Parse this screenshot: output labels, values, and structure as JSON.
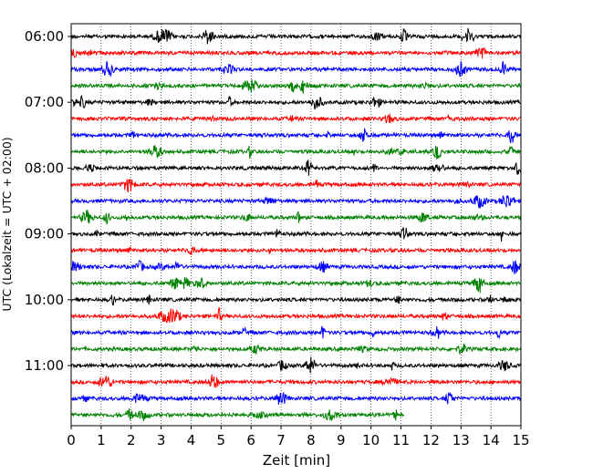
{
  "chart_data": {
    "type": "line",
    "xlabel": "Zeit  [min]",
    "ylabel": "UTC (Lokalzeit = UTC + 02:00)",
    "xlim": [
      0,
      15
    ],
    "x_ticks": [
      "0",
      "1",
      "2",
      "3",
      "4",
      "5",
      "6",
      "7",
      "8",
      "9",
      "10",
      "11",
      "12",
      "13",
      "14",
      "15"
    ],
    "y_ticks": [
      "06:00",
      "07:00",
      "08:00",
      "09:00",
      "10:00",
      "11:00"
    ],
    "grid": "vertical dotted at each minute",
    "colors": [
      "#000000",
      "#ff0000",
      "#0000ff",
      "#008000"
    ],
    "trace_count": 24,
    "trace_interval_minutes": 15,
    "first_trace": "06:00",
    "last_trace_end_minute": 11.1,
    "series_note": "24 seismogram traces of 15 minutes each, 06:00 to 11:45 UTC"
  }
}
